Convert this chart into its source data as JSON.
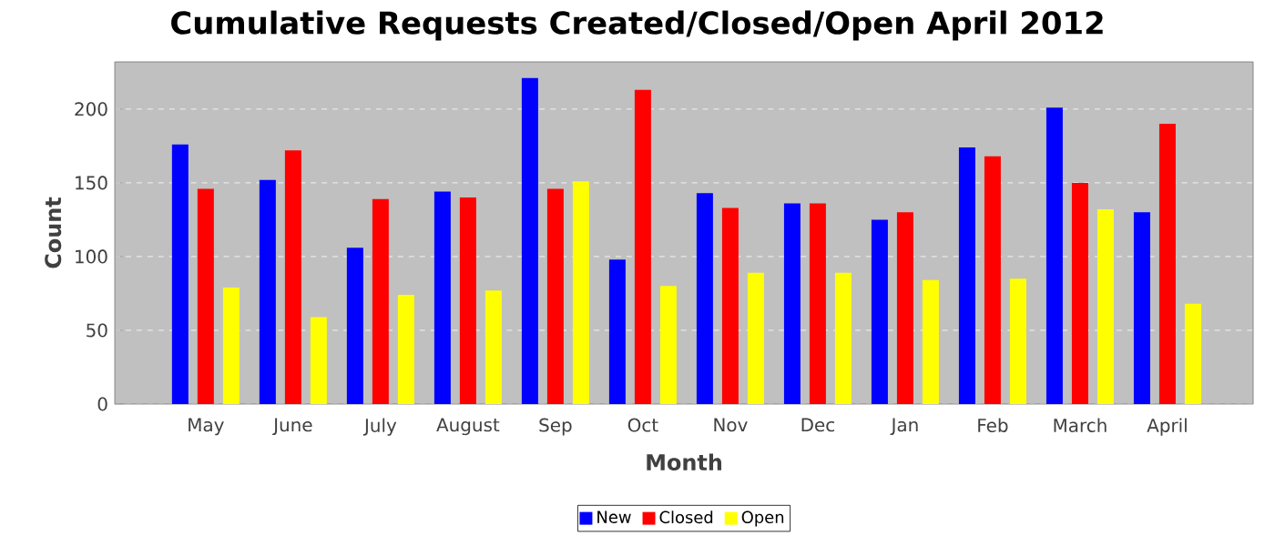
{
  "chart_data": {
    "type": "bar",
    "title": "Cumulative Requests Created/Closed/Open April 2012",
    "xlabel": "Month",
    "ylabel": "Count",
    "categories": [
      "May",
      "June",
      "July",
      "August",
      "Sep",
      "Oct",
      "Nov",
      "Dec",
      "Jan",
      "Feb",
      "March",
      "April"
    ],
    "series": [
      {
        "name": "New",
        "color": "#0000ff",
        "values": [
          176,
          152,
          106,
          144,
          221,
          98,
          143,
          136,
          125,
          174,
          201,
          130
        ]
      },
      {
        "name": "Closed",
        "color": "#ff0000",
        "values": [
          146,
          172,
          139,
          140,
          146,
          213,
          133,
          136,
          130,
          168,
          150,
          190
        ]
      },
      {
        "name": "Open",
        "color": "#ffff00",
        "values": [
          79,
          59,
          74,
          77,
          151,
          80,
          89,
          89,
          84,
          85,
          132,
          68
        ]
      }
    ],
    "ylim": [
      0,
      232
    ],
    "yticks": [
      0,
      50,
      100,
      150,
      200
    ],
    "grid": "y",
    "legend": "bottom"
  }
}
